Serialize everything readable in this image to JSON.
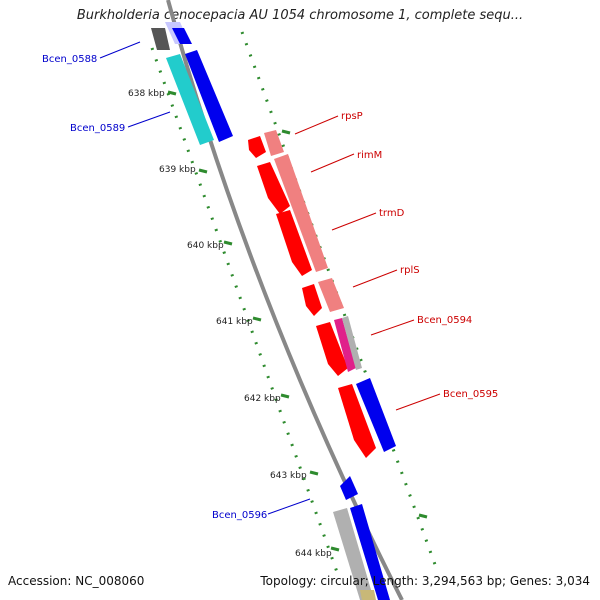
{
  "title": "Burkholderia cenocepacia AU 1054 chromosome 1, complete sequ...",
  "accession": "Accession: NC_008060",
  "summary": "Topology: circular; Length: 3,294,563 bp; Genes: 3,034",
  "kbp_ticks": [
    "638 kbp",
    "639 kbp",
    "640 kbp",
    "641 kbp",
    "642 kbp",
    "643 kbp",
    "644 kbp"
  ],
  "gene_labels": [
    "Bcen_0588",
    "Bcen_0589",
    "rpsP",
    "rimM",
    "trmD",
    "rplS",
    "Bcen_0594",
    "Bcen_0595",
    "Bcen_0596"
  ],
  "colors": {
    "red": "#ff0000",
    "pink": "#f08080",
    "blue": "#0000ee",
    "lightblue": "#c8c8ff",
    "cyan": "#22cccc",
    "gray": "#b0b0b0",
    "darkgray": "#666666",
    "magenta": "#e0208a",
    "olive": "#c8b878",
    "tick_green": "#2e8b2e",
    "blue_label": "#0000cc",
    "red_label": "#cc0000"
  }
}
